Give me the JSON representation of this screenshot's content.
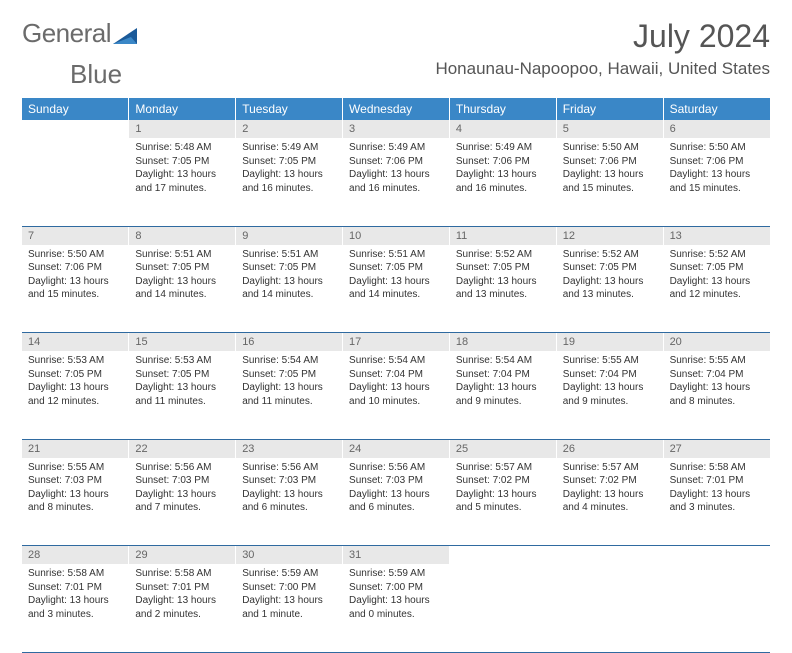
{
  "brand": {
    "name_part1": "General",
    "name_part2": "Blue"
  },
  "title": "July 2024",
  "location": "Honaunau-Napoopoo, Hawaii, United States",
  "colors": {
    "header_bg": "#3a87c7",
    "header_text": "#ffffff",
    "daynum_bg": "#e8e8e8",
    "daynum_text": "#666666",
    "row_divider": "#2f6aa0",
    "body_text": "#333333",
    "title_text": "#555555",
    "logo_gray": "#6b6b6b",
    "logo_blue": "#1b5a99",
    "page_bg": "#ffffff"
  },
  "weekdays": [
    "Sunday",
    "Monday",
    "Tuesday",
    "Wednesday",
    "Thursday",
    "Friday",
    "Saturday"
  ],
  "weeks": [
    [
      null,
      {
        "d": "1",
        "sr": "5:48 AM",
        "ss": "7:05 PM",
        "dl": "13 hours and 17 minutes."
      },
      {
        "d": "2",
        "sr": "5:49 AM",
        "ss": "7:05 PM",
        "dl": "13 hours and 16 minutes."
      },
      {
        "d": "3",
        "sr": "5:49 AM",
        "ss": "7:06 PM",
        "dl": "13 hours and 16 minutes."
      },
      {
        "d": "4",
        "sr": "5:49 AM",
        "ss": "7:06 PM",
        "dl": "13 hours and 16 minutes."
      },
      {
        "d": "5",
        "sr": "5:50 AM",
        "ss": "7:06 PM",
        "dl": "13 hours and 15 minutes."
      },
      {
        "d": "6",
        "sr": "5:50 AM",
        "ss": "7:06 PM",
        "dl": "13 hours and 15 minutes."
      }
    ],
    [
      {
        "d": "7",
        "sr": "5:50 AM",
        "ss": "7:06 PM",
        "dl": "13 hours and 15 minutes."
      },
      {
        "d": "8",
        "sr": "5:51 AM",
        "ss": "7:05 PM",
        "dl": "13 hours and 14 minutes."
      },
      {
        "d": "9",
        "sr": "5:51 AM",
        "ss": "7:05 PM",
        "dl": "13 hours and 14 minutes."
      },
      {
        "d": "10",
        "sr": "5:51 AM",
        "ss": "7:05 PM",
        "dl": "13 hours and 14 minutes."
      },
      {
        "d": "11",
        "sr": "5:52 AM",
        "ss": "7:05 PM",
        "dl": "13 hours and 13 minutes."
      },
      {
        "d": "12",
        "sr": "5:52 AM",
        "ss": "7:05 PM",
        "dl": "13 hours and 13 minutes."
      },
      {
        "d": "13",
        "sr": "5:52 AM",
        "ss": "7:05 PM",
        "dl": "13 hours and 12 minutes."
      }
    ],
    [
      {
        "d": "14",
        "sr": "5:53 AM",
        "ss": "7:05 PM",
        "dl": "13 hours and 12 minutes."
      },
      {
        "d": "15",
        "sr": "5:53 AM",
        "ss": "7:05 PM",
        "dl": "13 hours and 11 minutes."
      },
      {
        "d": "16",
        "sr": "5:54 AM",
        "ss": "7:05 PM",
        "dl": "13 hours and 11 minutes."
      },
      {
        "d": "17",
        "sr": "5:54 AM",
        "ss": "7:04 PM",
        "dl": "13 hours and 10 minutes."
      },
      {
        "d": "18",
        "sr": "5:54 AM",
        "ss": "7:04 PM",
        "dl": "13 hours and 9 minutes."
      },
      {
        "d": "19",
        "sr": "5:55 AM",
        "ss": "7:04 PM",
        "dl": "13 hours and 9 minutes."
      },
      {
        "d": "20",
        "sr": "5:55 AM",
        "ss": "7:04 PM",
        "dl": "13 hours and 8 minutes."
      }
    ],
    [
      {
        "d": "21",
        "sr": "5:55 AM",
        "ss": "7:03 PM",
        "dl": "13 hours and 8 minutes."
      },
      {
        "d": "22",
        "sr": "5:56 AM",
        "ss": "7:03 PM",
        "dl": "13 hours and 7 minutes."
      },
      {
        "d": "23",
        "sr": "5:56 AM",
        "ss": "7:03 PM",
        "dl": "13 hours and 6 minutes."
      },
      {
        "d": "24",
        "sr": "5:56 AM",
        "ss": "7:03 PM",
        "dl": "13 hours and 6 minutes."
      },
      {
        "d": "25",
        "sr": "5:57 AM",
        "ss": "7:02 PM",
        "dl": "13 hours and 5 minutes."
      },
      {
        "d": "26",
        "sr": "5:57 AM",
        "ss": "7:02 PM",
        "dl": "13 hours and 4 minutes."
      },
      {
        "d": "27",
        "sr": "5:58 AM",
        "ss": "7:01 PM",
        "dl": "13 hours and 3 minutes."
      }
    ],
    [
      {
        "d": "28",
        "sr": "5:58 AM",
        "ss": "7:01 PM",
        "dl": "13 hours and 3 minutes."
      },
      {
        "d": "29",
        "sr": "5:58 AM",
        "ss": "7:01 PM",
        "dl": "13 hours and 2 minutes."
      },
      {
        "d": "30",
        "sr": "5:59 AM",
        "ss": "7:00 PM",
        "dl": "13 hours and 1 minute."
      },
      {
        "d": "31",
        "sr": "5:59 AM",
        "ss": "7:00 PM",
        "dl": "13 hours and 0 minutes."
      },
      null,
      null,
      null
    ]
  ],
  "labels": {
    "sunrise": "Sunrise:",
    "sunset": "Sunset:",
    "daylight": "Daylight:"
  }
}
